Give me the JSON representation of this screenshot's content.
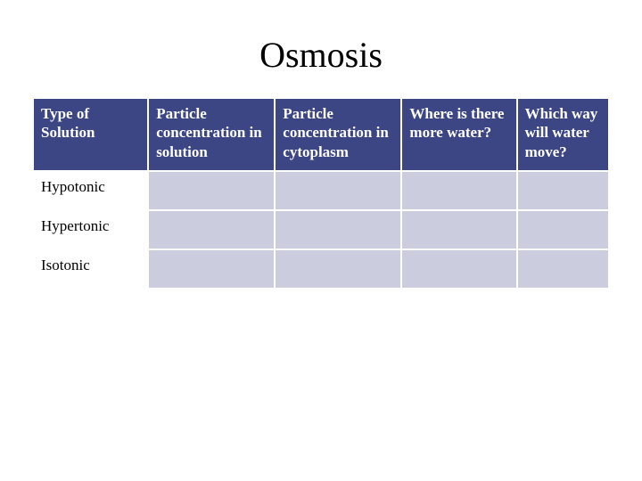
{
  "title": "Osmosis",
  "table": {
    "header_bg": "#3d4684",
    "header_fg": "#ffffff",
    "cell_bg": "#cbcddf",
    "rowlabel_bg": "#ffffff",
    "border_color": "#ffffff",
    "columns": [
      "Type of Solution",
      "Particle concentration in solution",
      "Particle concentration in cytoplasm",
      "Where is there more water?",
      "Which way will water move?"
    ],
    "rows": [
      {
        "label": "Hypotonic",
        "cells": [
          "",
          "",
          "",
          ""
        ]
      },
      {
        "label": "Hypertonic",
        "cells": [
          "",
          "",
          "",
          ""
        ]
      },
      {
        "label": "Isotonic",
        "cells": [
          "",
          "",
          "",
          ""
        ]
      }
    ]
  },
  "title_fontsize": 40,
  "header_fontsize": 17,
  "cell_fontsize": 17
}
